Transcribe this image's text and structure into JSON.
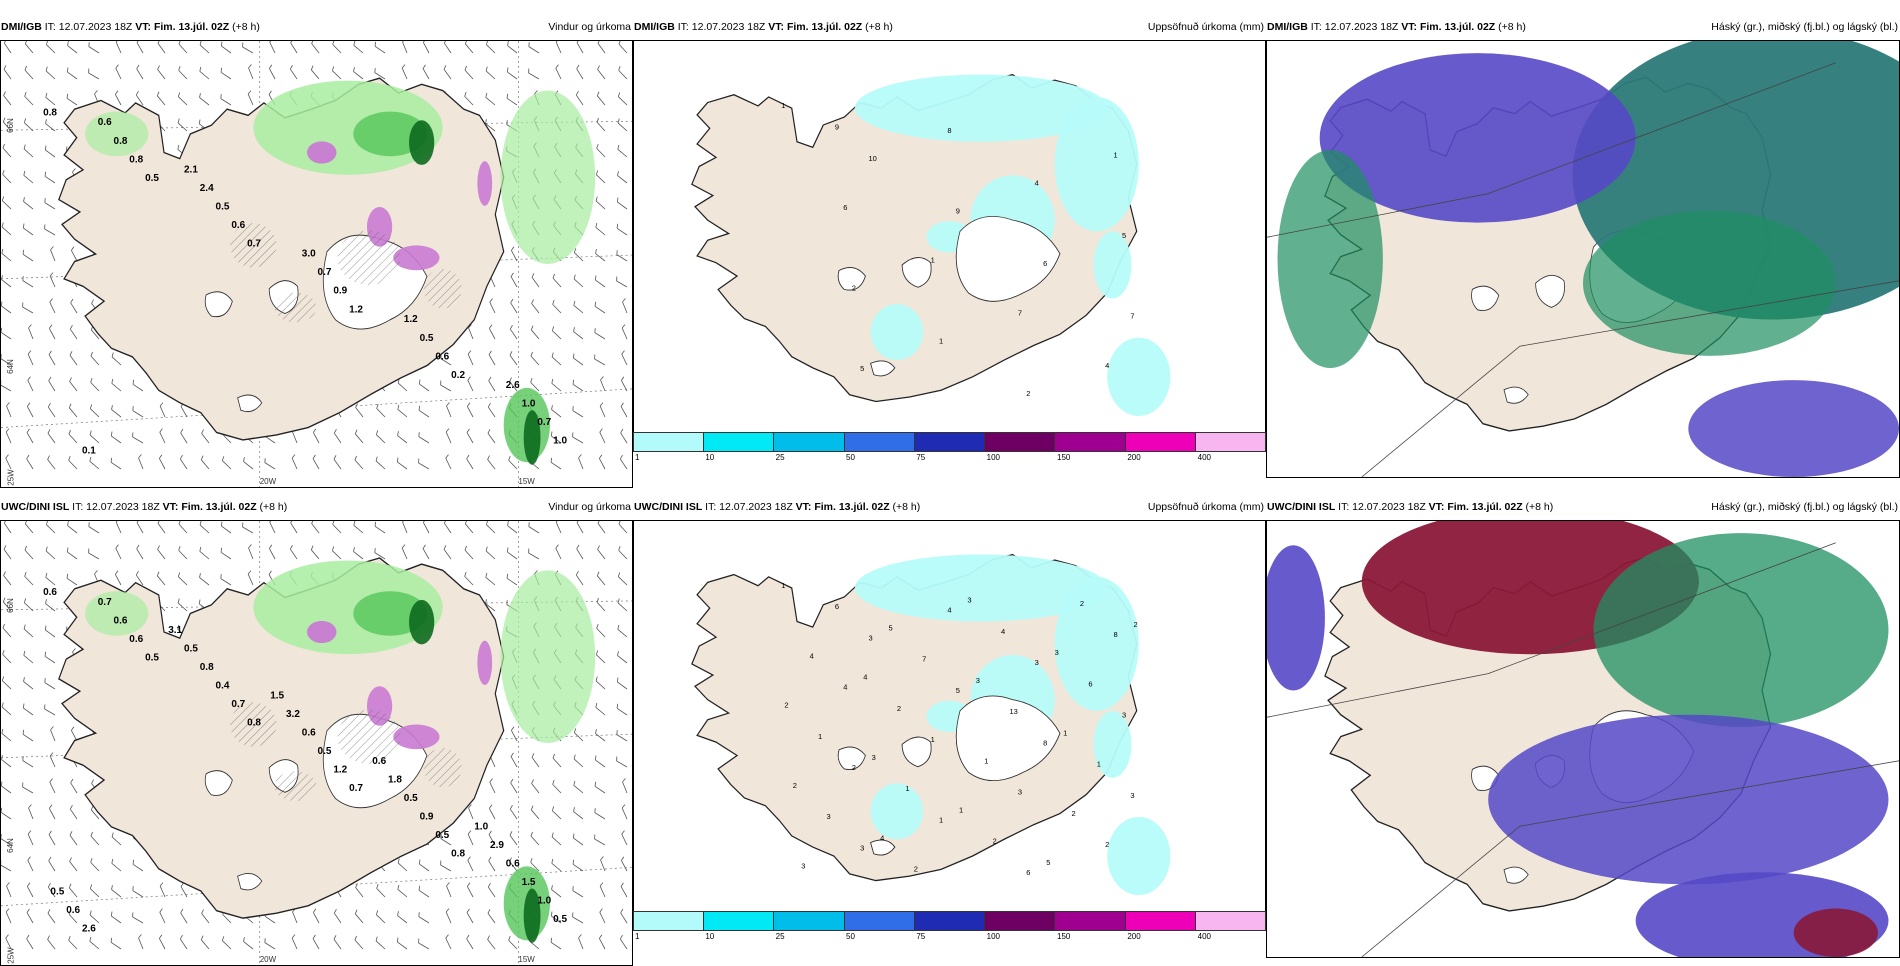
{
  "rows": [
    {
      "model": "DMI/IGB",
      "it": "IT: 12.07.2023 18Z",
      "vt_label": "VT:",
      "vt_value": "Fim. 13.júl. 02Z",
      "lead": "(+8 h)"
    },
    {
      "model": "UWC/DINI ISL",
      "it": "IT: 12.07.2023 18Z",
      "vt_label": "VT:",
      "vt_value": "Fim. 13.júl. 02Z",
      "lead": "(+8 h)"
    }
  ],
  "panel_titles": {
    "wind": "Vindur og úrkoma",
    "precip": "Uppsöfnuð úrkoma (mm)",
    "cloud": "Háský (gr.), miðský (fj.bl.) og lágský (bl.)"
  },
  "axis_labels": {
    "lat66": "66N",
    "lat64": "64N",
    "lon25": "25W",
    "lon20": "20W",
    "lon15": "15W"
  },
  "legend": {
    "ticks": [
      "1",
      "10",
      "25",
      "50",
      "75",
      "100",
      "150",
      "200",
      "400"
    ],
    "colors": [
      "#b3fbfb",
      "#00e9f5",
      "#00bdea",
      "#2f6ee6",
      "#1f2bb3",
      "#6e0064",
      "#a0008f",
      "#ee00b8",
      "#f8b6f1"
    ]
  },
  "colors": {
    "land": "#f1e6da",
    "ice": "#ffffff",
    "precip_light": "#b6fcfa",
    "rain_light": "#a8eda0",
    "rain_mid": "#55c55a",
    "rain_dark": "#0c6a1e",
    "hail": "#c97ad3",
    "high_cloud": "#2b7a78",
    "mid_cloud": "#5548c7",
    "low_cloud": "#1e8f61",
    "deep_red": "#8a1838"
  },
  "wind_labels_top": [
    "0.8",
    "0.5",
    "0.7",
    "1.2",
    "0.2",
    "1.0",
    "0.8",
    "0.6",
    "0.9",
    "0.6",
    "0.7",
    "0.8",
    "0.5",
    "0.7",
    "0.5",
    "1.0",
    "0.6",
    "2.4",
    "3.0",
    "1.2",
    "2.6",
    "0.1",
    "2.1"
  ],
  "wind_labels_bottom": [
    "0.6",
    "0.5",
    "0.8",
    "0.7",
    "0.8",
    "0.5",
    "0.6",
    "0.7",
    "1.2",
    "0.5",
    "1.0",
    "0.6",
    "0.4",
    "0.5",
    "0.9",
    "1.5",
    "0.7",
    "0.8",
    "0.6",
    "0.5",
    "0.6",
    "2.6",
    "0.5",
    "3.2",
    "1.8",
    "2.9",
    "0.6",
    "3.1",
    "1.5",
    "0.6",
    "1.0",
    "0.5"
  ],
  "precip_labels_top": [
    "1",
    "10",
    "9",
    "6",
    "7",
    "5",
    "8",
    "4",
    "5",
    "2",
    "1",
    "2",
    "1",
    "6",
    "1",
    "7",
    "4",
    "9"
  ],
  "precip_labels_bottom": [
    "1",
    "3",
    "5",
    "8",
    "3",
    "3",
    "4",
    "3",
    "3",
    "2",
    "1",
    "6",
    "8",
    "4",
    "1",
    "3",
    "2",
    "6",
    "7",
    "13",
    "1",
    "3",
    "2",
    "4",
    "6",
    "1",
    "1",
    "2",
    "2",
    "4",
    "2",
    "1",
    "2",
    "3",
    "5",
    "3",
    "1",
    "2",
    "4",
    "3",
    "3",
    "2",
    "3",
    "1",
    "5",
    "2",
    "4"
  ]
}
